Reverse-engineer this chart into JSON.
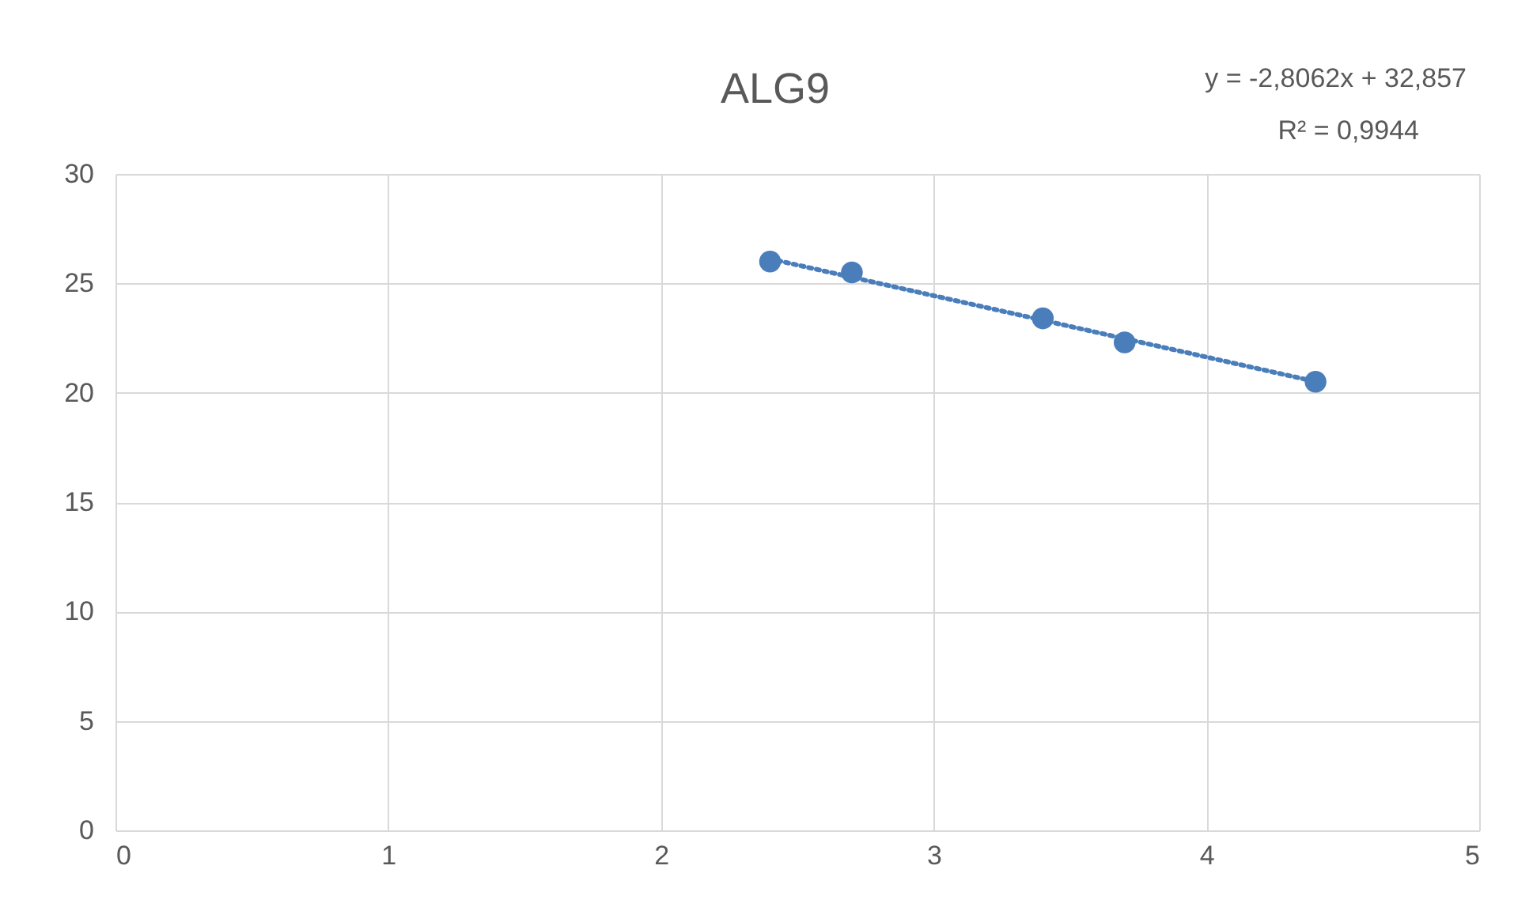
{
  "chart_data": {
    "type": "scatter",
    "title": "ALG9",
    "annotations": [
      "y = -2,8062x + 32,857",
      "R² = 0,9944"
    ],
    "series": [
      {
        "color": "#4a7ebb",
        "marker": "circle",
        "x": [
          2.4,
          2.7,
          3.4,
          3.7,
          4.4
        ],
        "values": [
          26.0,
          25.5,
          23.4,
          22.3,
          20.5
        ]
      },
      {
        "type": "line",
        "color": "#4a7ebb",
        "line_style": "dotted",
        "x": [
          2.4,
          4.4
        ],
        "values": [
          26.12,
          20.51
        ]
      }
    ],
    "xlim": [
      0,
      5
    ],
    "xticks": [
      0,
      1,
      2,
      3,
      4,
      5
    ],
    "ylim": [
      0,
      30
    ],
    "yticks": [
      0,
      5,
      10,
      15,
      20,
      25,
      30
    ],
    "grid": true
  }
}
